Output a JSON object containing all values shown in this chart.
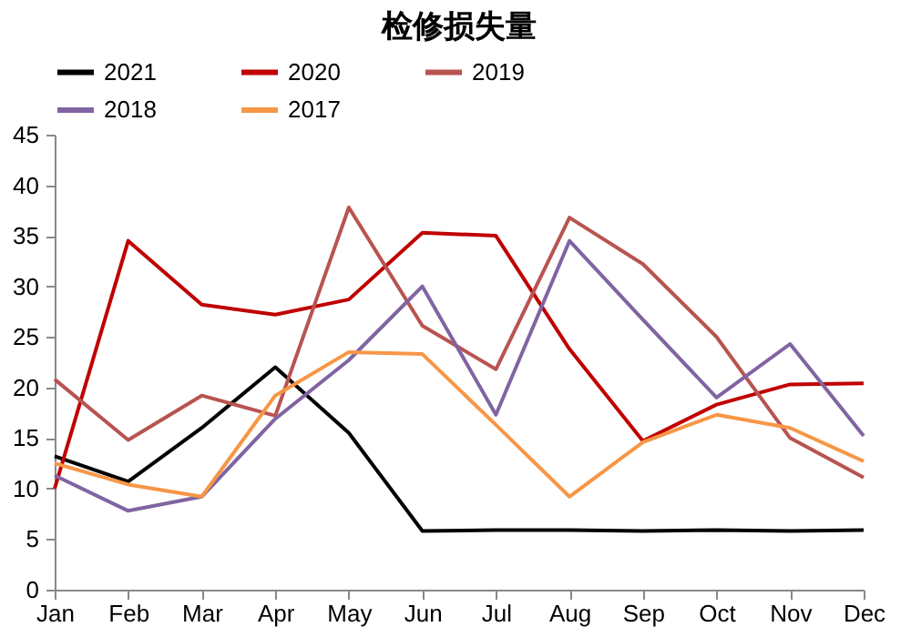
{
  "chart_data": {
    "type": "line",
    "title": "检修损失量",
    "categories": [
      "Jan",
      "Feb",
      "Mar",
      "Apr",
      "May",
      "Jun",
      "Jul",
      "Aug",
      "Sep",
      "Oct",
      "Nov",
      "Dec"
    ],
    "series": [
      {
        "name": "2021",
        "color": "#000000",
        "values": [
          13.2,
          10.7,
          16,
          22,
          15.5,
          5.8,
          5.9,
          5.9,
          5.8,
          5.9,
          5.8,
          5.9
        ]
      },
      {
        "name": "2020",
        "color": "#c00000",
        "values": [
          10,
          34.5,
          28.2,
          27.2,
          28.7,
          35.3,
          35,
          23.8,
          14.7,
          18.3,
          20.3,
          20.4
        ]
      },
      {
        "name": "2019",
        "color": "#b85450",
        "values": [
          20.8,
          14.8,
          19.2,
          17.2,
          37.8,
          26.1,
          21.8,
          36.8,
          32.2,
          25,
          15,
          11.1
        ]
      },
      {
        "name": "2018",
        "color": "#8064a2",
        "values": [
          11.3,
          7.8,
          9.2,
          16.9,
          22.7,
          30,
          17.3,
          34.5,
          26.7,
          19,
          24.3,
          15.2
        ]
      },
      {
        "name": "2017",
        "color": "#f79646",
        "values": [
          12.5,
          10.4,
          9.2,
          19.2,
          23.5,
          23.3,
          16.3,
          9.2,
          14.6,
          17.3,
          16,
          12.7
        ]
      }
    ],
    "ylim": [
      0,
      45
    ],
    "yticks": [
      0,
      5,
      10,
      15,
      20,
      25,
      30,
      35,
      40,
      45
    ],
    "grid": false,
    "legend": "top"
  }
}
